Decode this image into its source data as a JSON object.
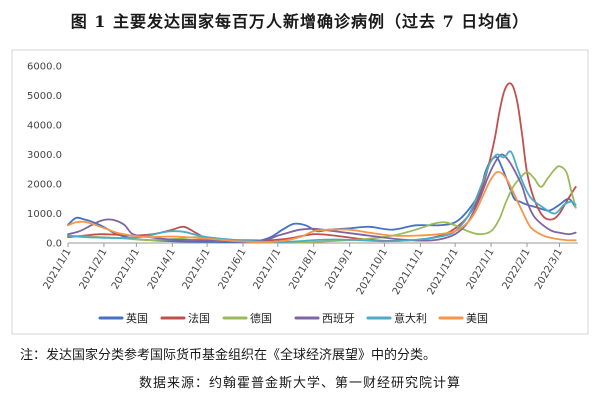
{
  "title": "图 1 主要发达国家每百万人新增确诊病例（过去 7 日均值）",
  "note": "注：发达国家分类参考国际货币基金组织在《全球经济展望》中的分类。",
  "source": "数据来源：约翰霍普金斯大学、第一财经研究院计算",
  "chart_data": {
    "type": "line",
    "ylim": [
      0,
      6000
    ],
    "yticks": [
      "0.0",
      "1000.0",
      "2000.0",
      "3000.0",
      "4000.0",
      "5000.0",
      "6000.0"
    ],
    "yticks_values": [
      0,
      1000,
      2000,
      3000,
      4000,
      5000,
      6000
    ],
    "xlim": [
      0,
      440
    ],
    "x_unit": "week",
    "xticks": [
      "2021/1/1",
      "2021/2/1",
      "2021/3/1",
      "2021/4/1",
      "2021/5/1",
      "2021/6/1",
      "2021/7/1",
      "2021/8/1",
      "2021/9/1",
      "2021/10/1",
      "2021/11/1",
      "2021/12/1",
      "2022/1/1",
      "2022/2/1",
      "2022/3/1"
    ],
    "xticks_values": [
      0,
      31,
      59,
      90,
      120,
      151,
      181,
      212,
      243,
      273,
      304,
      334,
      365,
      396,
      424
    ],
    "legend_position": "bottom",
    "grid": false,
    "series": [
      {
        "name": "英国",
        "color": "#4472C4",
        "x": [
          0,
          7,
          14,
          21,
          28,
          35,
          42,
          56,
          70,
          90,
          120,
          150,
          165,
          175,
          185,
          195,
          205,
          215,
          225,
          243,
          260,
          280,
          300,
          320,
          334,
          345,
          355,
          360,
          365,
          370,
          375,
          380,
          385,
          390,
          396,
          405,
          415,
          424,
          432,
          438
        ],
        "y": [
          620,
          850,
          800,
          720,
          600,
          450,
          300,
          150,
          100,
          60,
          40,
          30,
          80,
          200,
          450,
          650,
          600,
          400,
          450,
          500,
          550,
          450,
          600,
          600,
          700,
          1100,
          1700,
          2400,
          2800,
          2900,
          2500,
          2000,
          1500,
          1400,
          1300,
          1200,
          1100,
          1300,
          1500,
          1200
        ]
      },
      {
        "name": "法国",
        "color": "#C0504D",
        "x": [
          0,
          14,
          28,
          42,
          56,
          70,
          80,
          90,
          100,
          110,
          120,
          135,
          151,
          170,
          190,
          212,
          230,
          250,
          270,
          290,
          310,
          325,
          334,
          345,
          355,
          362,
          368,
          372,
          376,
          380,
          384,
          388,
          392,
          396,
          402,
          410,
          418,
          424,
          430,
          438
        ],
        "y": [
          200,
          250,
          300,
          280,
          250,
          280,
          350,
          450,
          550,
          350,
          150,
          80,
          50,
          80,
          150,
          300,
          250,
          150,
          80,
          80,
          150,
          300,
          500,
          900,
          1600,
          2500,
          3500,
          4400,
          5100,
          5400,
          5300,
          4700,
          3600,
          2400,
          1500,
          900,
          800,
          1000,
          1400,
          1900
        ]
      },
      {
        "name": "德国",
        "color": "#9BBB59",
        "x": [
          0,
          14,
          28,
          42,
          56,
          70,
          90,
          110,
          120,
          140,
          160,
          181,
          200,
          220,
          243,
          260,
          280,
          300,
          315,
          325,
          334,
          345,
          355,
          365,
          372,
          378,
          384,
          390,
          396,
          402,
          408,
          414,
          420,
          424,
          430,
          434,
          438
        ],
        "y": [
          250,
          220,
          200,
          170,
          130,
          100,
          130,
          200,
          180,
          100,
          40,
          10,
          15,
          50,
          100,
          150,
          250,
          450,
          650,
          700,
          600,
          400,
          300,
          400,
          800,
          1400,
          1900,
          2200,
          2400,
          2200,
          1900,
          2200,
          2500,
          2600,
          2400,
          1800,
          1200
        ]
      },
      {
        "name": "西班牙",
        "color": "#8064A2",
        "x": [
          0,
          10,
          20,
          28,
          35,
          42,
          49,
          56,
          70,
          90,
          120,
          151,
          170,
          181,
          190,
          200,
          212,
          230,
          250,
          280,
          304,
          320,
          334,
          345,
          355,
          362,
          368,
          374,
          380,
          386,
          392,
          396,
          402,
          410,
          418,
          424,
          432,
          438
        ],
        "y": [
          300,
          400,
          600,
          750,
          800,
          750,
          600,
          300,
          200,
          120,
          100,
          100,
          100,
          250,
          350,
          450,
          480,
          400,
          300,
          150,
          80,
          120,
          300,
          700,
          1500,
          2200,
          2700,
          3000,
          2800,
          2400,
          1900,
          1400,
          900,
          600,
          400,
          350,
          300,
          350
        ]
      },
      {
        "name": "意大利",
        "color": "#4BACC6",
        "x": [
          0,
          14,
          28,
          42,
          56,
          70,
          80,
          90,
          100,
          110,
          120,
          140,
          160,
          181,
          200,
          212,
          230,
          250,
          270,
          290,
          310,
          325,
          334,
          345,
          352,
          358,
          364,
          370,
          376,
          382,
          388,
          394,
          400,
          410,
          420,
          428,
          434,
          438
        ],
        "y": [
          250,
          200,
          180,
          170,
          180,
          250,
          350,
          400,
          380,
          280,
          200,
          120,
          60,
          30,
          60,
          100,
          120,
          100,
          60,
          80,
          150,
          250,
          400,
          900,
          1500,
          2100,
          2700,
          3000,
          2900,
          3100,
          2500,
          1900,
          1500,
          1200,
          1000,
          1300,
          1400,
          1300
        ]
      },
      {
        "name": "美国",
        "color": "#F79646",
        "x": [
          0,
          7,
          14,
          21,
          28,
          35,
          42,
          56,
          70,
          90,
          120,
          150,
          181,
          200,
          212,
          225,
          243,
          260,
          280,
          300,
          320,
          334,
          345,
          352,
          358,
          364,
          370,
          376,
          382,
          388,
          394,
          400,
          410,
          420,
          430,
          438
        ],
        "y": [
          600,
          700,
          720,
          650,
          550,
          450,
          350,
          250,
          200,
          220,
          150,
          50,
          50,
          200,
          400,
          450,
          450,
          350,
          250,
          250,
          300,
          400,
          700,
          1100,
          1600,
          2100,
          2400,
          2300,
          1900,
          1400,
          900,
          500,
          250,
          150,
          100,
          90
        ]
      }
    ]
  }
}
